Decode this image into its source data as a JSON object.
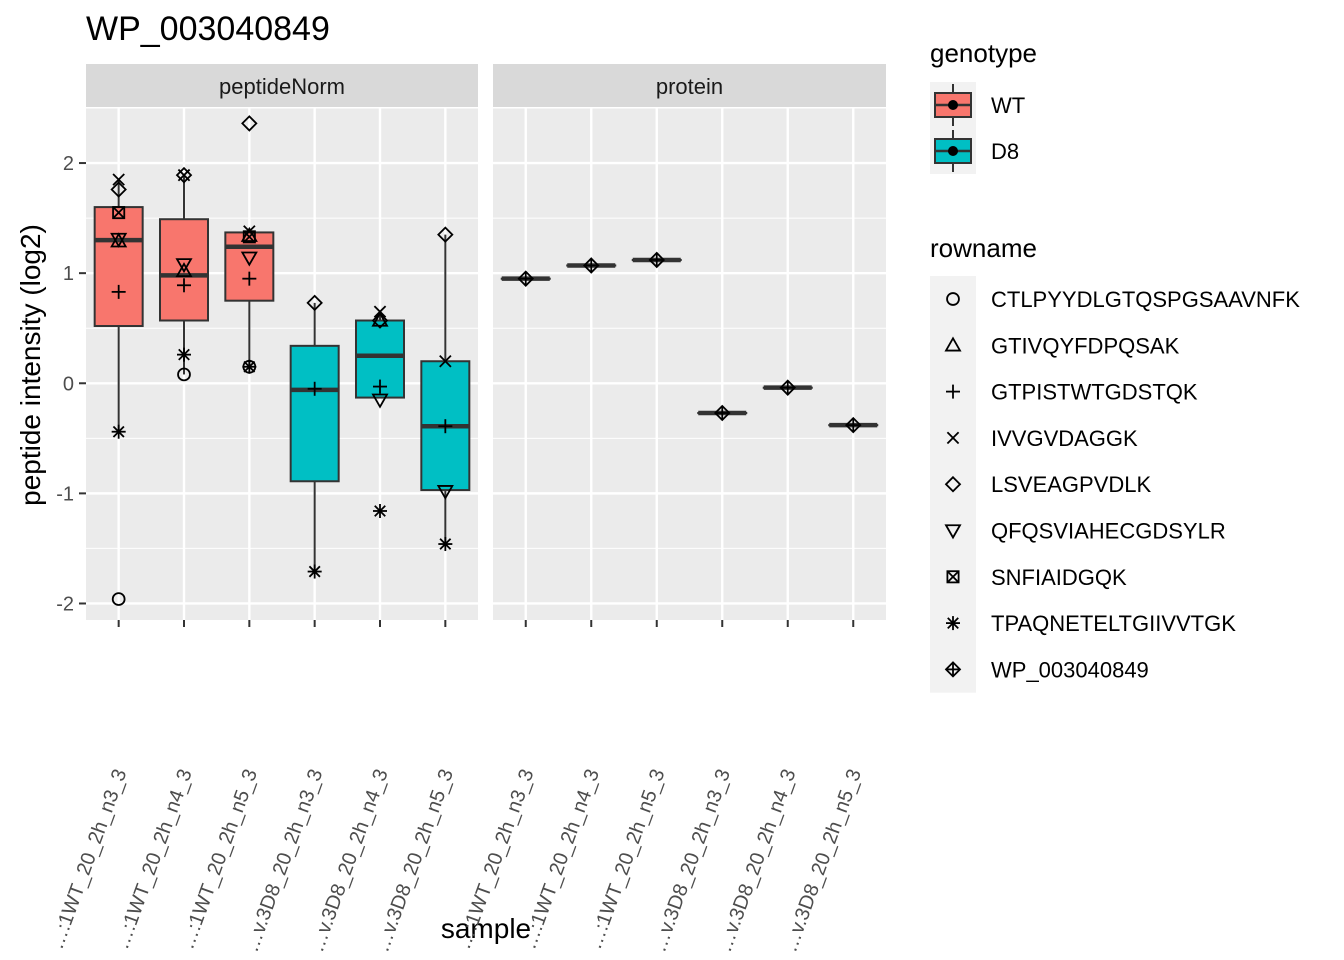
{
  "chart_data": {
    "type": "boxplot",
    "title": "WP_003040849",
    "xlabel": "sample",
    "ylabel": "peptide intensity (log2)",
    "ylim": [
      -2.15,
      2.5
    ],
    "y_ticks": [
      -2,
      -1,
      0,
      1,
      2
    ],
    "grid": true,
    "legend_position": "right",
    "categories": [
      "…:1WT_20_2h_n3_3",
      "…:1WT_20_2h_n4_3",
      "…:1WT_20_2h_n5_3",
      "…v.3D8_20_2h_n3_3",
      "…v.3D8_20_2h_n4_3",
      "…v.3D8_20_2h_n5_3"
    ],
    "genotype_legend": {
      "title": "genotype",
      "items": [
        {
          "label": "WT",
          "color": "#F8766D"
        },
        {
          "label": "D8",
          "color": "#00BFC4"
        }
      ]
    },
    "rowname_legend": {
      "title": "rowname",
      "items": [
        {
          "label": "CTLPYYDLGTQSPGSAAVNFK",
          "shape": "circle"
        },
        {
          "label": "GTIVQYFDPQSAK",
          "shape": "triangle"
        },
        {
          "label": "GTPISTWTGDSTQK",
          "shape": "plus"
        },
        {
          "label": "IVVGVDAGGK",
          "shape": "cross"
        },
        {
          "label": "LSVEAGPVDLK",
          "shape": "diamond"
        },
        {
          "label": "QFQSVIAHECGDSYLR",
          "shape": "triangle-down"
        },
        {
          "label": "SNFIAIDGQK",
          "shape": "square-cross"
        },
        {
          "label": "TPAQNETELTGIIVVTGK",
          "shape": "asterisk"
        },
        {
          "label": "WP_003040849",
          "shape": "diamond-plus"
        }
      ]
    },
    "facets": [
      {
        "label": "peptideNorm",
        "boxes": [
          {
            "genotype": "WT",
            "q1": 0.52,
            "median": 1.3,
            "q3": 1.6,
            "whisker_low": -0.45,
            "whisker_high": 1.85
          },
          {
            "genotype": "WT",
            "q1": 0.57,
            "median": 0.98,
            "q3": 1.49,
            "whisker_low": 0.08,
            "whisker_high": 1.88
          },
          {
            "genotype": "WT",
            "q1": 0.75,
            "median": 1.24,
            "q3": 1.37,
            "whisker_low": 0.15,
            "whisker_high": 1.4
          },
          {
            "genotype": "D8",
            "q1": -0.89,
            "median": -0.06,
            "q3": 0.34,
            "whisker_low": -1.71,
            "whisker_high": 0.73
          },
          {
            "genotype": "D8",
            "q1": -0.13,
            "median": 0.25,
            "q3": 0.57,
            "whisker_low": -0.13,
            "whisker_high": 0.65
          },
          {
            "genotype": "D8",
            "q1": -0.97,
            "median": -0.39,
            "q3": 0.2,
            "whisker_low": -1.46,
            "whisker_high": 1.35
          }
        ],
        "points": [
          {
            "sample": 0,
            "shape": "circle",
            "y": -1.96
          },
          {
            "sample": 0,
            "shape": "triangle",
            "y": 1.29
          },
          {
            "sample": 0,
            "shape": "plus",
            "y": 0.83
          },
          {
            "sample": 0,
            "shape": "cross",
            "y": 1.85
          },
          {
            "sample": 0,
            "shape": "diamond",
            "y": 1.76
          },
          {
            "sample": 0,
            "shape": "triangle-down",
            "y": 1.31
          },
          {
            "sample": 0,
            "shape": "square-cross",
            "y": 1.55
          },
          {
            "sample": 0,
            "shape": "asterisk",
            "y": -0.44
          },
          {
            "sample": 1,
            "shape": "circle",
            "y": 0.08
          },
          {
            "sample": 1,
            "shape": "triangle",
            "y": 1.02
          },
          {
            "sample": 1,
            "shape": "plus",
            "y": 0.89
          },
          {
            "sample": 1,
            "shape": "cross",
            "y": 1.89
          },
          {
            "sample": 1,
            "shape": "diamond",
            "y": 1.89
          },
          {
            "sample": 1,
            "shape": "triangle-down",
            "y": 1.08
          },
          {
            "sample": 1,
            "shape": "asterisk",
            "y": 0.26
          },
          {
            "sample": 2,
            "shape": "circle",
            "y": 0.15
          },
          {
            "sample": 2,
            "shape": "triangle",
            "y": 1.34
          },
          {
            "sample": 2,
            "shape": "plus",
            "y": 0.95
          },
          {
            "sample": 2,
            "shape": "cross",
            "y": 1.38
          },
          {
            "sample": 2,
            "shape": "diamond",
            "y": 2.36
          },
          {
            "sample": 2,
            "shape": "triangle-down",
            "y": 1.14
          },
          {
            "sample": 2,
            "shape": "square-cross",
            "y": 1.33
          },
          {
            "sample": 2,
            "shape": "asterisk",
            "y": 0.15
          },
          {
            "sample": 3,
            "shape": "plus",
            "y": -0.05
          },
          {
            "sample": 3,
            "shape": "diamond",
            "y": 0.73
          },
          {
            "sample": 3,
            "shape": "asterisk",
            "y": -1.71
          },
          {
            "sample": 4,
            "shape": "triangle",
            "y": 0.57
          },
          {
            "sample": 4,
            "shape": "plus",
            "y": -0.03
          },
          {
            "sample": 4,
            "shape": "cross",
            "y": 0.65
          },
          {
            "sample": 4,
            "shape": "diamond",
            "y": 0.57
          },
          {
            "sample": 4,
            "shape": "triangle-down",
            "y": -0.15
          },
          {
            "sample": 4,
            "shape": "asterisk",
            "y": -1.16
          },
          {
            "sample": 5,
            "shape": "plus",
            "y": -0.39
          },
          {
            "sample": 5,
            "shape": "cross",
            "y": 0.2
          },
          {
            "sample": 5,
            "shape": "diamond",
            "y": 1.35
          },
          {
            "sample": 5,
            "shape": "triangle-down",
            "y": -0.98
          },
          {
            "sample": 5,
            "shape": "asterisk",
            "y": -1.46
          }
        ]
      },
      {
        "label": "protein",
        "boxes": [
          {
            "genotype": "WT",
            "q1": 0.95,
            "median": 0.95,
            "q3": 0.95,
            "whisker_low": 0.95,
            "whisker_high": 0.95
          },
          {
            "genotype": "WT",
            "q1": 1.07,
            "median": 1.07,
            "q3": 1.07,
            "whisker_low": 1.07,
            "whisker_high": 1.07
          },
          {
            "genotype": "WT",
            "q1": 1.12,
            "median": 1.12,
            "q3": 1.12,
            "whisker_low": 1.12,
            "whisker_high": 1.12
          },
          {
            "genotype": "D8",
            "q1": -0.27,
            "median": -0.27,
            "q3": -0.27,
            "whisker_low": -0.27,
            "whisker_high": -0.27
          },
          {
            "genotype": "D8",
            "q1": -0.04,
            "median": -0.04,
            "q3": -0.04,
            "whisker_low": -0.04,
            "whisker_high": -0.04
          },
          {
            "genotype": "D8",
            "q1": -0.38,
            "median": -0.38,
            "q3": -0.38,
            "whisker_low": -0.38,
            "whisker_high": -0.38
          }
        ],
        "points": [
          {
            "sample": 0,
            "shape": "diamond-plus",
            "y": 0.95
          },
          {
            "sample": 1,
            "shape": "diamond-plus",
            "y": 1.07
          },
          {
            "sample": 2,
            "shape": "diamond-plus",
            "y": 1.12
          },
          {
            "sample": 3,
            "shape": "diamond-plus",
            "y": -0.27
          },
          {
            "sample": 4,
            "shape": "diamond-plus",
            "y": -0.04
          },
          {
            "sample": 5,
            "shape": "diamond-plus",
            "y": -0.38
          }
        ]
      }
    ]
  }
}
